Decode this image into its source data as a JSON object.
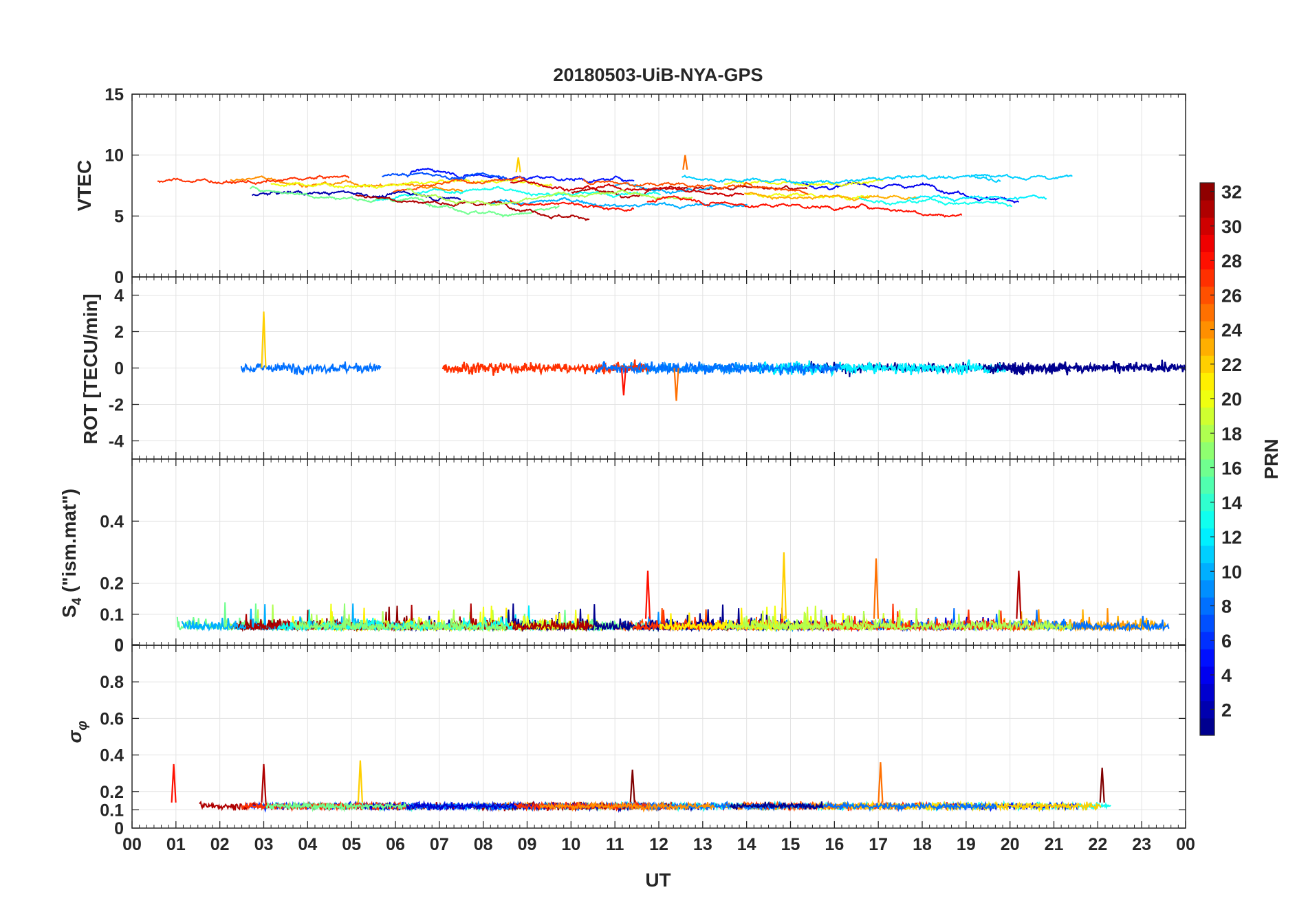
{
  "chart_data": {
    "type": "line",
    "title": "20180503-UiB-NYA-GPS",
    "xlabel": "UT",
    "x_range_hours": [
      0,
      24
    ],
    "x_ticks": [
      "00",
      "01",
      "02",
      "03",
      "04",
      "05",
      "06",
      "07",
      "08",
      "09",
      "10",
      "11",
      "12",
      "13",
      "14",
      "15",
      "16",
      "17",
      "18",
      "19",
      "20",
      "21",
      "22",
      "23",
      "00"
    ],
    "grid": true,
    "colorbar": {
      "label": "PRN",
      "range": [
        1,
        32
      ],
      "ticks": [
        "2",
        "4",
        "6",
        "8",
        "10",
        "12",
        "14",
        "16",
        "18",
        "20",
        "22",
        "24",
        "26",
        "28",
        "30",
        "32"
      ],
      "colormap": "jet",
      "placement": "right"
    },
    "panels": [
      {
        "name": "vtec",
        "ylabel": "VTEC",
        "ylim": [
          0,
          15
        ],
        "y_ticks": [
          "0",
          "5",
          "10",
          "15"
        ],
        "typical_range": [
          4.5,
          10
        ],
        "noted_peaks": [
          {
            "ut": 8.8,
            "value": 9.8
          },
          {
            "ut": 12.6,
            "value": 10
          }
        ]
      },
      {
        "name": "rot",
        "ylabel": "ROT [TECU/min]",
        "ylim": [
          -5,
          5
        ],
        "y_ticks": [
          "-4",
          "-2",
          "0",
          "2",
          "4"
        ],
        "typical_range": [
          -0.7,
          0.7
        ],
        "noted_peaks": [
          {
            "ut": 3.0,
            "value": 3.1
          },
          {
            "ut": 12.4,
            "value": -1.8
          },
          {
            "ut": 11.2,
            "value": -1.5
          }
        ]
      },
      {
        "name": "s4",
        "ylabel": "S4 (\"ism.mat\")",
        "ylabel_main": "S",
        "ylabel_sub": "4",
        "ylabel_rest": " (\"ism.mat\")",
        "ylim": [
          0,
          0.6
        ],
        "y_ticks": [
          "0",
          "0",
          "0.1",
          "0.2",
          "0.4"
        ],
        "typical_range": [
          0.02,
          0.15
        ],
        "noted_peaks": [
          {
            "ut": 14.85,
            "value": 0.3
          },
          {
            "ut": 16.95,
            "value": 0.28
          },
          {
            "ut": 11.75,
            "value": 0.24
          },
          {
            "ut": 20.2,
            "value": 0.24
          }
        ]
      },
      {
        "name": "sigma_phi",
        "ylabel": "σφ",
        "ylabel_main": "σ",
        "ylabel_sub": "φ",
        "ylim": [
          0,
          1
        ],
        "y_ticks": [
          "0",
          "0.1",
          "0.2",
          "0.4",
          "0.6",
          "0.8"
        ],
        "typical_range": [
          0.08,
          0.2
        ],
        "noted_peaks": [
          {
            "ut": 5.2,
            "value": 0.37
          },
          {
            "ut": 17.05,
            "value": 0.36
          },
          {
            "ut": 0.95,
            "value": 0.35
          },
          {
            "ut": 3.0,
            "value": 0.35
          },
          {
            "ut": 22.1,
            "value": 0.33
          },
          {
            "ut": 11.4,
            "value": 0.32
          }
        ]
      }
    ]
  }
}
